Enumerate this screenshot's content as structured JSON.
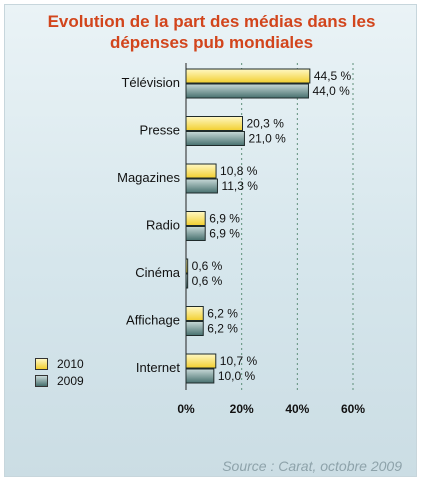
{
  "title_line1": "Evolution de la part des médias dans les",
  "title_line2": "dépenses pub mondiales",
  "source": "Source : Carat, octobre 2009",
  "chart_data": {
    "type": "bar",
    "orientation": "horizontal",
    "categories": [
      "Télévision",
      "Presse",
      "Magazines",
      "Radio",
      "Cinéma",
      "Affichage",
      "Internet"
    ],
    "series": [
      {
        "name": "2010",
        "values": [
          44.5,
          20.3,
          10.8,
          6.9,
          0.6,
          6.2,
          10.7
        ],
        "labels": [
          "44,5 %",
          "20,3 %",
          "10,8 %",
          "6,9 %",
          "0,6 %",
          "6,2 %",
          "10,7 %"
        ],
        "color_top": "#fff8c4",
        "color_bottom": "#f2cf2f"
      },
      {
        "name": "2009",
        "values": [
          44.0,
          21.0,
          11.3,
          6.9,
          0.6,
          6.2,
          10.0
        ],
        "labels": [
          "44,0 %",
          "21,0 %",
          "11,3 %",
          "6,9 %",
          "0,6 %",
          "6,2 %",
          "10,0 %"
        ],
        "color_top": "#c8d9d8",
        "color_bottom": "#47706e"
      }
    ],
    "xlim": [
      0,
      60
    ],
    "xticks": [
      0,
      20,
      40,
      60
    ],
    "xtick_labels": [
      "0%",
      "20%",
      "40%",
      "60%"
    ],
    "grid": "vertical dotted",
    "legend_position": "bottom-left",
    "title": "Evolution de la part des médias dans les dépenses pub mondiales"
  }
}
